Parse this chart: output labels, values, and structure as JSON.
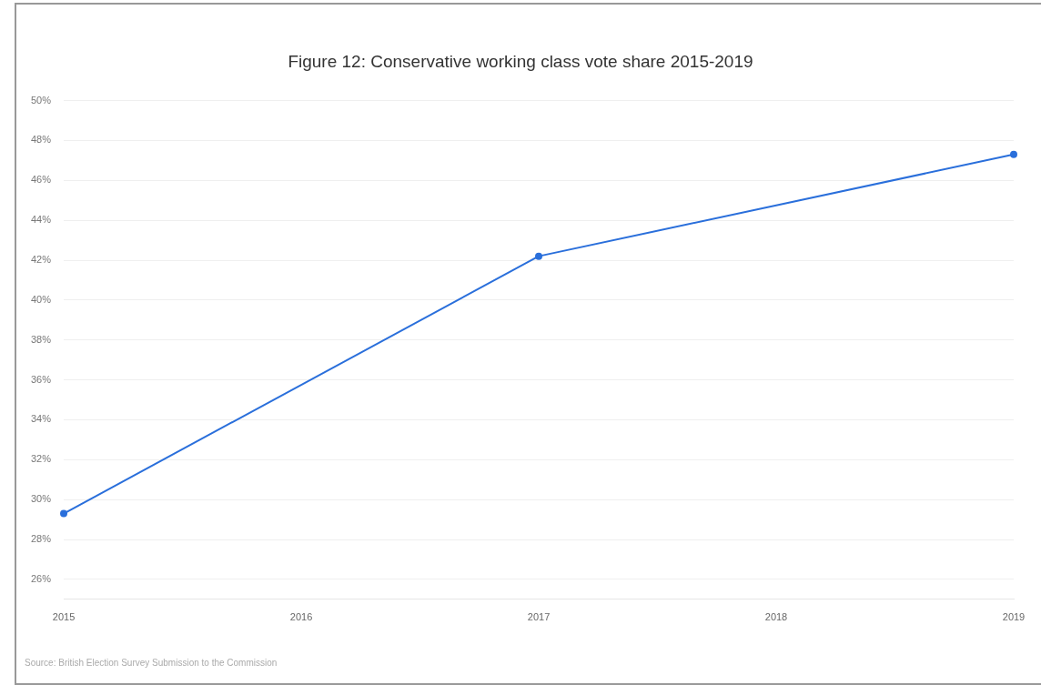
{
  "chart_data": {
    "type": "line",
    "title": "Figure 12: Conservative working class vote share 2015-2019",
    "categories": [
      "2015",
      "2016",
      "2017",
      "2018",
      "2019"
    ],
    "values": [
      29.3,
      null,
      42.2,
      null,
      47.3
    ],
    "color": "#2a6fdb",
    "marker": "circle",
    "line_style": "solid",
    "grid": "y",
    "legend": false,
    "ylim": [
      25,
      50
    ],
    "yticks": [
      {
        "value": 26,
        "label": "26%"
      },
      {
        "value": 28,
        "label": "28%"
      },
      {
        "value": 30,
        "label": "30%"
      },
      {
        "value": 32,
        "label": "32%"
      },
      {
        "value": 34,
        "label": "34%"
      },
      {
        "value": 36,
        "label": "36%"
      },
      {
        "value": 38,
        "label": "38%"
      },
      {
        "value": 40,
        "label": "40%"
      },
      {
        "value": 42,
        "label": "42%"
      },
      {
        "value": 44,
        "label": "44%"
      },
      {
        "value": 46,
        "label": "46%"
      },
      {
        "value": 48,
        "label": "48%"
      },
      {
        "value": 50,
        "label": "50%"
      }
    ],
    "annotations": [
      "Source: British Election Survey Submission to the Commission"
    ]
  }
}
